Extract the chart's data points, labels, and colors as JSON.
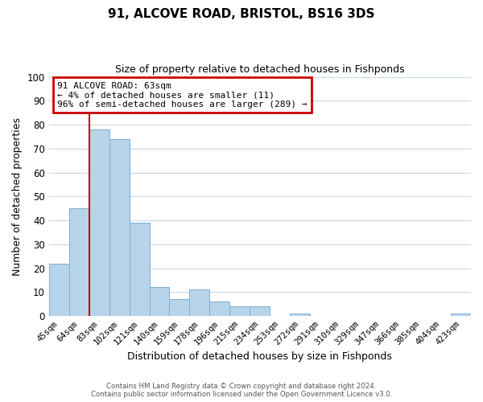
{
  "title": "91, ALCOVE ROAD, BRISTOL, BS16 3DS",
  "subtitle": "Size of property relative to detached houses in Fishponds",
  "xlabel": "Distribution of detached houses by size in Fishponds",
  "ylabel": "Number of detached properties",
  "bar_color": "#b8d4ea",
  "bar_edge_color": "#7aaed0",
  "highlight_color": "#cc0000",
  "background_color": "#ffffff",
  "grid_color": "#c8d8e8",
  "categories": [
    "45sqm",
    "64sqm",
    "83sqm",
    "102sqm",
    "121sqm",
    "140sqm",
    "159sqm",
    "178sqm",
    "196sqm",
    "215sqm",
    "234sqm",
    "253sqm",
    "272sqm",
    "291sqm",
    "310sqm",
    "329sqm",
    "347sqm",
    "366sqm",
    "385sqm",
    "404sqm",
    "423sqm"
  ],
  "values": [
    22,
    45,
    78,
    74,
    39,
    12,
    7,
    11,
    6,
    4,
    4,
    0,
    1,
    0,
    0,
    0,
    0,
    0,
    0,
    0,
    1
  ],
  "red_line_x": 1.5,
  "ylim": [
    0,
    100
  ],
  "yticks": [
    0,
    10,
    20,
    30,
    40,
    50,
    60,
    70,
    80,
    90,
    100
  ],
  "annotation_title": "91 ALCOVE ROAD: 63sqm",
  "annotation_line1": "← 4% of detached houses are smaller (11)",
  "annotation_line2": "96% of semi-detached houses are larger (289) →",
  "footer_line1": "Contains HM Land Registry data © Crown copyright and database right 2024.",
  "footer_line2": "Contains public sector information licensed under the Open Government Licence v3.0."
}
